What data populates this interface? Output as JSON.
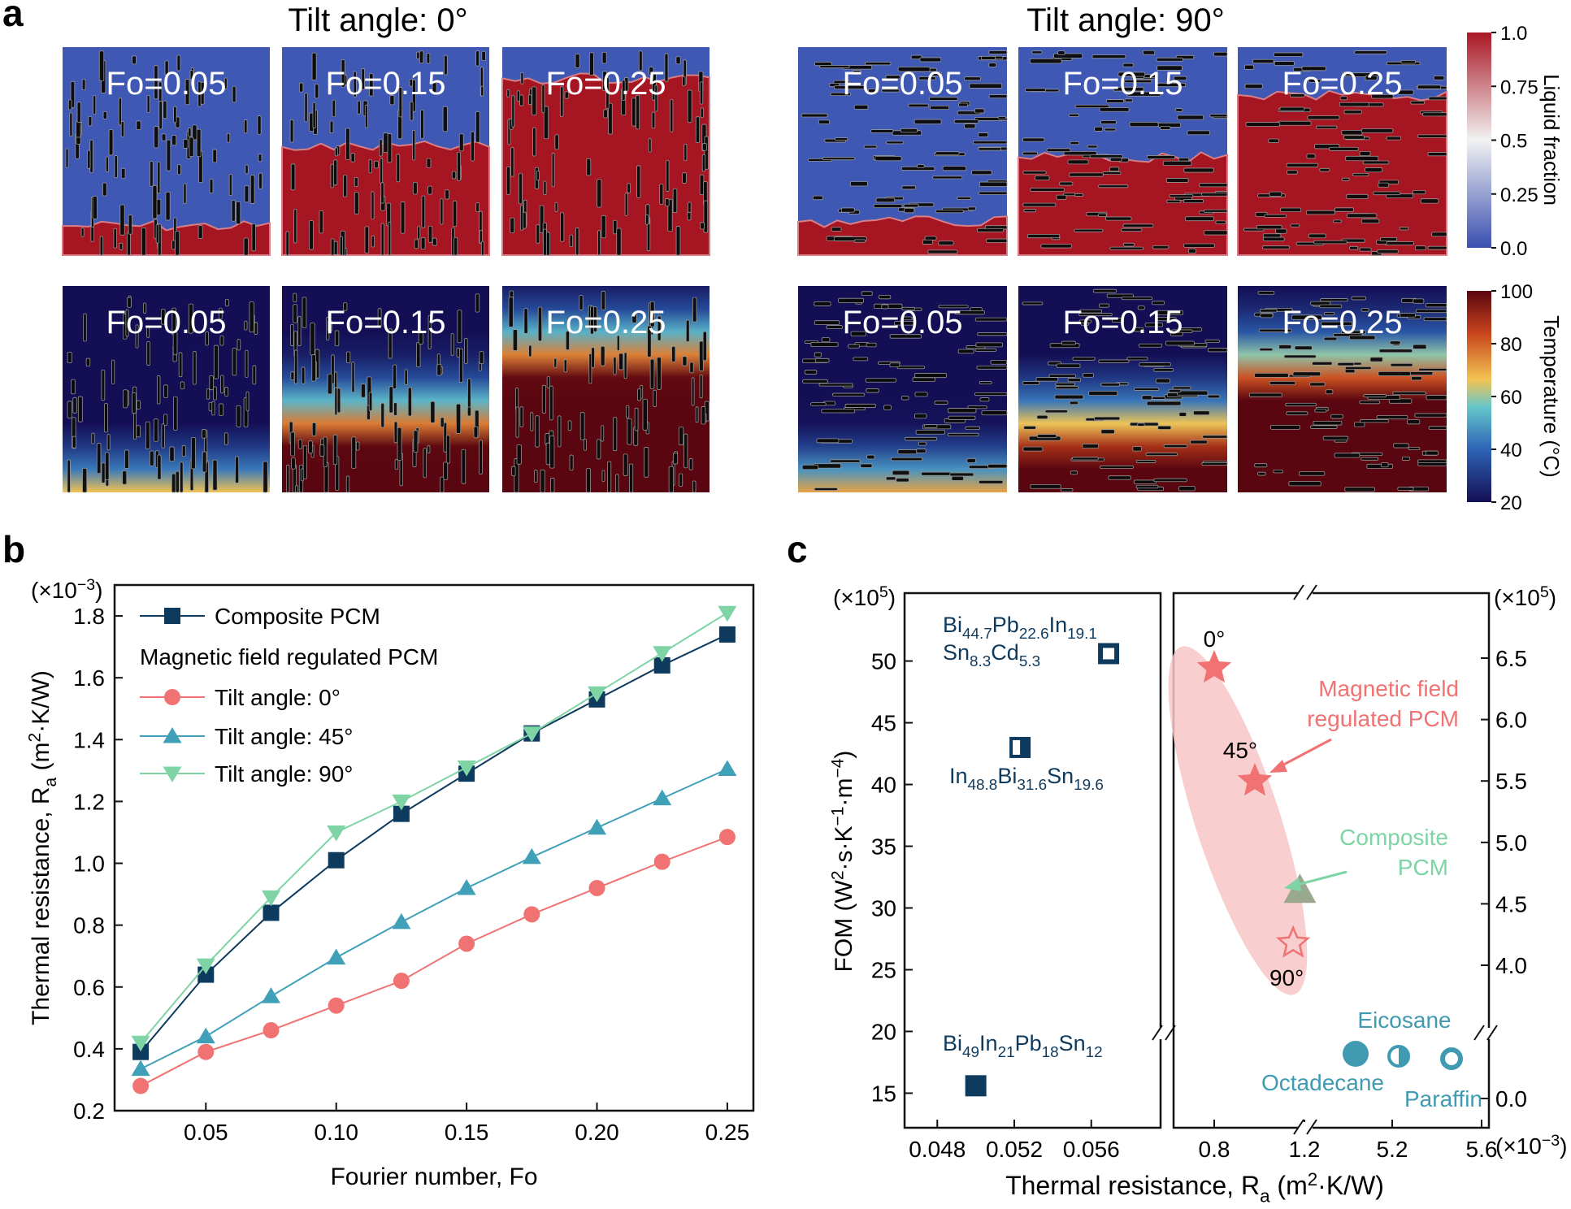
{
  "panel_a": {
    "letter": "a",
    "left_title": "Tilt angle: 0°",
    "right_title": "Tilt angle: 90°",
    "fo_labels": [
      "Fo=0.05",
      "Fo=0.15",
      "Fo=0.25"
    ],
    "tilt0_liquid_front": [
      0.14,
      0.52,
      0.85
    ],
    "tilt90_liquid_front": [
      0.16,
      0.47,
      0.77
    ],
    "colorbar_liquid": {
      "label": "Liquid fraction",
      "ticks": [
        "1.0",
        "0.75",
        "0.5",
        "0.25",
        "0.0"
      ],
      "colors": [
        "#aa1825",
        "#f2f2f2",
        "#3a4fb0"
      ]
    },
    "colorbar_temp": {
      "label": "Temperature (°C)",
      "ticks": [
        "100",
        "80",
        "60",
        "40",
        "20"
      ],
      "colors": [
        "#5a0610",
        "#c8441c",
        "#f2c453",
        "#65c6cc",
        "#2d63b5",
        "#140f55"
      ]
    }
  },
  "chart_data": [
    {
      "panel": "b",
      "type": "line",
      "xlabel": "Fourier number, Fo",
      "ylabel": "Thermal resistance, Ra (m²·K/W)",
      "y_multiplier": "(×10⁻³)",
      "xlim": [
        0.015,
        0.26
      ],
      "ylim": [
        0.2,
        1.9
      ],
      "x_ticks": [
        "0.05",
        "0.10",
        "0.15",
        "0.20",
        "0.25"
      ],
      "y_ticks": [
        "0.2",
        "0.4",
        "0.6",
        "0.8",
        "1.0",
        "1.2",
        "1.4",
        "1.6",
        "1.8"
      ],
      "legend_group_label": "Magnetic field regulated PCM",
      "legend_position": "top-left",
      "x": [
        0.025,
        0.05,
        0.075,
        0.1,
        0.125,
        0.15,
        0.175,
        0.2,
        0.225,
        0.25
      ],
      "series": [
        {
          "name": "Composite PCM",
          "marker": "square",
          "color": "#0e3a5e",
          "values": [
            0.39,
            0.64,
            0.84,
            1.01,
            1.16,
            1.29,
            1.42,
            1.53,
            1.64,
            1.74
          ]
        },
        {
          "name": "Tilt angle: 0°",
          "marker": "circle",
          "color": "#f07272",
          "values": [
            0.28,
            0.39,
            0.46,
            0.54,
            0.62,
            0.74,
            0.835,
            0.92,
            1.005,
            1.085
          ]
        },
        {
          "name": "Tilt angle: 45°",
          "marker": "triangle-up",
          "color": "#3fa0b8",
          "values": [
            0.335,
            0.44,
            0.57,
            0.695,
            0.81,
            0.92,
            1.02,
            1.115,
            1.21,
            1.305
          ]
        },
        {
          "name": "Tilt angle: 90°",
          "marker": "triangle-down",
          "color": "#7ed4a4",
          "values": [
            0.42,
            0.67,
            0.89,
            1.1,
            1.2,
            1.31,
            1.42,
            1.55,
            1.68,
            1.81
          ]
        }
      ]
    },
    {
      "panel": "c",
      "type": "scatter",
      "xlabel": "Thermal resistance, Ra (m²·K/W)",
      "ylabel": "FOM (W²·s·K⁻¹·m⁻⁴)",
      "y_left_multiplier": "(×10⁵)",
      "y_right_multiplier": "(×10⁵)",
      "x_multiplier": "(×10⁻³)",
      "left_x_ticks": [
        "0.048",
        "0.052",
        "0.056"
      ],
      "left_y_ticks": [
        "15",
        "20",
        "25",
        "30",
        "35",
        "40",
        "45",
        "50"
      ],
      "left_xlim": [
        0.0463,
        0.0596
      ],
      "left_ylim": [
        12.2,
        55.5
      ],
      "right_x_ticks": [
        "0.8",
        "1.2",
        "5.2",
        "5.6"
      ],
      "right_y_ticks": [
        "0.0",
        "4.0",
        "4.5",
        "5.0",
        "5.5",
        "6.0",
        "6.5"
      ],
      "metals": [
        {
          "name": "Bi44.7Pb22.6In19.1Sn8.3Cd5.3",
          "label_lines": [
            {
              "parts": [
                [
                  "Bi",
                  ""
                ],
                [
                  "44.7",
                  "s"
                ],
                [
                  "Pb",
                  ""
                ],
                [
                  "22.6",
                  "s"
                ],
                [
                  "In",
                  ""
                ],
                [
                  "19.1",
                  "s"
                ]
              ]
            },
            {
              "parts": [
                [
                  "Sn",
                  ""
                ],
                [
                  "8.3",
                  "s"
                ],
                [
                  "Cd",
                  ""
                ],
                [
                  "5.3",
                  "s"
                ]
              ]
            }
          ],
          "x": 0.0569,
          "y": 50.6,
          "marker": "square-hollow"
        },
        {
          "name": "In48.8Bi31.6Sn19.6",
          "label_lines": [
            {
              "parts": [
                [
                  "In",
                  ""
                ],
                [
                  "48.8",
                  "s"
                ],
                [
                  "Bi",
                  ""
                ],
                [
                  "31.6",
                  "s"
                ],
                [
                  "Sn",
                  ""
                ],
                [
                  "19.6",
                  "s"
                ]
              ]
            }
          ],
          "x": 0.0523,
          "y": 43.0,
          "marker": "square-half"
        },
        {
          "name": "Bi49In21Pb18Sn12",
          "label_lines": [
            {
              "parts": [
                [
                  "Bi",
                  ""
                ],
                [
                  "49",
                  "s"
                ],
                [
                  "In",
                  ""
                ],
                [
                  "21",
                  "s"
                ],
                [
                  "Pb",
                  ""
                ],
                [
                  "18",
                  "s"
                ],
                [
                  "Sn",
                  ""
                ],
                [
                  "12",
                  "s"
                ]
              ]
            }
          ],
          "x": 0.05,
          "y": 15.6,
          "marker": "square"
        }
      ],
      "pcm_upper": [
        {
          "name": "0°",
          "x": 0.8,
          "y": 6.42,
          "marker": "star"
        },
        {
          "name": "45°",
          "x": 0.98,
          "y": 5.5,
          "marker": "star"
        },
        {
          "name": "Composite PCM",
          "x": 1.18,
          "y": 4.6,
          "marker": "triangle"
        },
        {
          "name": "90°",
          "x": 1.15,
          "y": 4.18,
          "marker": "star-hollow"
        }
      ],
      "organics": [
        {
          "name": "Eicosane",
          "x": 5.0,
          "y": 0.35,
          "marker": "circle"
        },
        {
          "name": "Octadecane",
          "x": 5.25,
          "y": 0.33,
          "marker": "circle-half"
        },
        {
          "name": "Paraffin",
          "x": 5.5,
          "y": 0.31,
          "marker": "circle-hollow"
        }
      ],
      "annotations": {
        "mfr": [
          "Magnetic field",
          "regulated PCM"
        ],
        "composite": [
          "Composite",
          "PCM"
        ]
      },
      "colors": {
        "metal": "#0e3a5e",
        "organic": "#3f9ab2",
        "mfr": "#f07272",
        "composite": "#7ed4a4",
        "highlight": "#f7c5c5"
      }
    }
  ]
}
